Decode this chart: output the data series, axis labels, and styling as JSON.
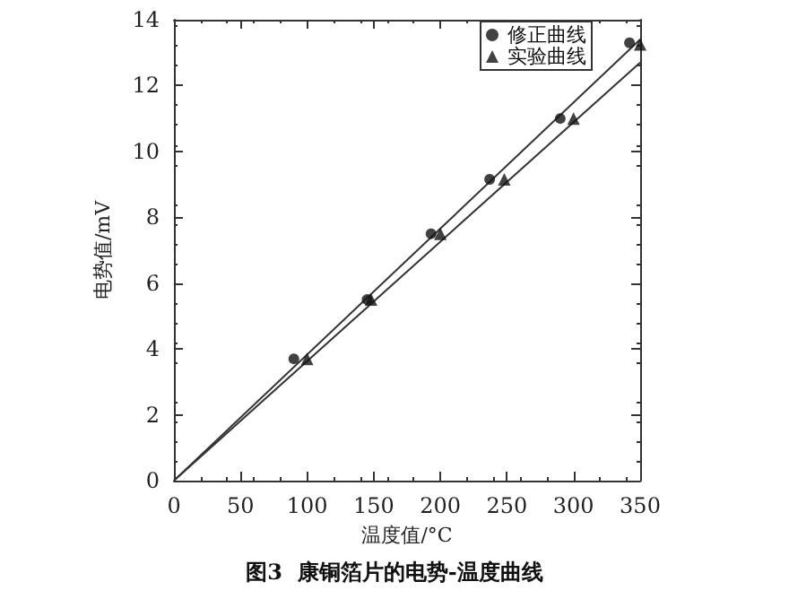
{
  "chart_data": {
    "type": "scatter",
    "title": "图3  康铜箔片的电势-温度曲线",
    "xlabel": "温度值/°C",
    "ylabel": "电势值/mV",
    "xlim": [
      0,
      350
    ],
    "xticks": [
      0,
      50,
      100,
      150,
      200,
      250,
      300,
      350
    ],
    "ylim": [
      0,
      14
    ],
    "yticks": [
      0,
      2,
      4,
      6,
      8,
      10,
      12,
      14
    ],
    "grid": false,
    "legend": "top right",
    "series": [
      {
        "name": "修正曲线",
        "marker": "circle",
        "color": "#111111",
        "x": [
          90,
          145,
          193,
          237,
          290,
          342
        ],
        "values": [
          3.7,
          5.5,
          7.5,
          9.15,
          11.0,
          13.3
        ]
      },
      {
        "name": "实验曲线",
        "marker": "triangle",
        "color": "#111111",
        "x": [
          100,
          148,
          200,
          248,
          300,
          350
        ],
        "values": [
          3.7,
          5.5,
          7.5,
          9.15,
          11.0,
          13.25
        ]
      },
      {
        "type": "line",
        "marker": "none",
        "color": "#333333",
        "x": [
          0,
          350
        ],
        "values": [
          0,
          13.4
        ]
      },
      {
        "type": "line",
        "marker": "none",
        "color": "#333333",
        "x": [
          0,
          350
        ],
        "values": [
          0,
          12.7
        ]
      }
    ]
  }
}
